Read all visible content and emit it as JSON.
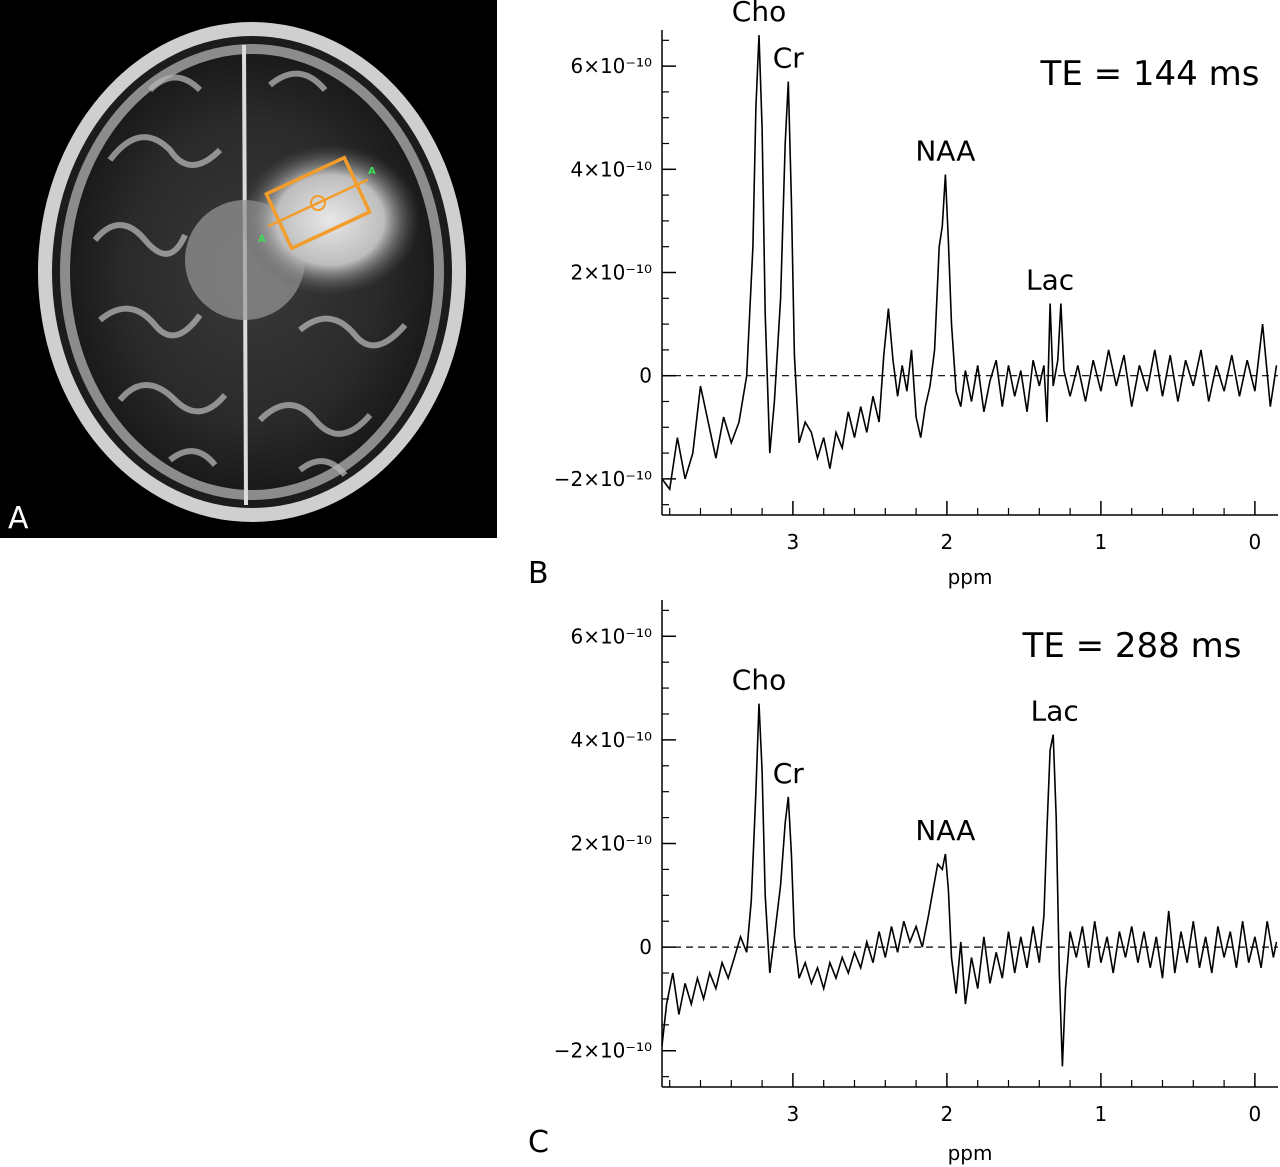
{
  "figure": {
    "panel_a": {
      "label": "A",
      "marker_label": "A",
      "colors": {
        "background": "#000000",
        "voxel_box": "#f29d2b",
        "marker": "#3ddc57"
      }
    }
  },
  "chart_data": [
    {
      "type": "line",
      "panel_label": "B",
      "annotation": "TE = 144 ms",
      "xlabel": "ppm",
      "ylabel": "",
      "xlim": [
        3.85,
        -0.15
      ],
      "ylim": [
        -2.7e-10,
        6.7e-10
      ],
      "xticks": [
        "3",
        "2",
        "1",
        "0"
      ],
      "yticks": [
        "−2×10⁻¹⁰",
        "0",
        "2×10⁻¹⁰",
        "4×10⁻¹⁰",
        "6×10⁻¹⁰"
      ],
      "baseline": 0,
      "peak_labels": [
        {
          "text": "Cho",
          "x": 3.22,
          "y": 6.6e-10
        },
        {
          "text": "Cr",
          "x": 3.03,
          "y": 5.7e-10
        },
        {
          "text": "NAA",
          "x": 2.01,
          "y": 3.9e-10
        },
        {
          "text": "Lac",
          "x": 1.33,
          "y": 1.4e-10
        }
      ],
      "series": [
        {
          "values": [
            [
              3.85,
              -2e-10
            ],
            [
              3.8,
              -2.2e-10
            ],
            [
              3.75,
              -1.2e-10
            ],
            [
              3.7,
              -2e-10
            ],
            [
              3.65,
              -1.5e-10
            ],
            [
              3.6,
              -2e-11
            ],
            [
              3.55,
              -9e-11
            ],
            [
              3.5,
              -1.6e-10
            ],
            [
              3.45,
              -8e-11
            ],
            [
              3.4,
              -1.3e-10
            ],
            [
              3.35,
              -9e-11
            ],
            [
              3.3,
              0.0
            ],
            [
              3.26,
              2.5e-10
            ],
            [
              3.24,
              5.2e-10
            ],
            [
              3.22,
              6.6e-10
            ],
            [
              3.2,
              4.8e-10
            ],
            [
              3.18,
              1.2e-10
            ],
            [
              3.15,
              -1.5e-10
            ],
            [
              3.12,
              -5e-11
            ],
            [
              3.08,
              1.5e-10
            ],
            [
              3.05,
              4.5e-10
            ],
            [
              3.03,
              5.7e-10
            ],
            [
              3.01,
              3.4e-10
            ],
            [
              2.99,
              4e-11
            ],
            [
              2.96,
              -1.3e-10
            ],
            [
              2.92,
              -9e-11
            ],
            [
              2.88,
              -1.1e-10
            ],
            [
              2.84,
              -1.6e-10
            ],
            [
              2.8,
              -1.2e-10
            ],
            [
              2.76,
              -1.8e-10
            ],
            [
              2.72,
              -1.1e-10
            ],
            [
              2.68,
              -1.4e-10
            ],
            [
              2.64,
              -7e-11
            ],
            [
              2.6,
              -1.2e-10
            ],
            [
              2.56,
              -6e-11
            ],
            [
              2.52,
              -1.1e-10
            ],
            [
              2.48,
              -4e-11
            ],
            [
              2.44,
              -9e-11
            ],
            [
              2.41,
              4e-11
            ],
            [
              2.38,
              1.3e-10
            ],
            [
              2.35,
              3e-11
            ],
            [
              2.32,
              -4e-11
            ],
            [
              2.29,
              2e-11
            ],
            [
              2.26,
              -3e-11
            ],
            [
              2.23,
              5e-11
            ],
            [
              2.2,
              -8e-11
            ],
            [
              2.17,
              -1.2e-10
            ],
            [
              2.14,
              -6e-11
            ],
            [
              2.11,
              -2e-11
            ],
            [
              2.08,
              5e-11
            ],
            [
              2.05,
              2.5e-10
            ],
            [
              2.03,
              2.9e-10
            ],
            [
              2.01,
              3.9e-10
            ],
            [
              1.99,
              2.6e-10
            ],
            [
              1.97,
              1e-10
            ],
            [
              1.94,
              -3e-11
            ],
            [
              1.91,
              -6e-11
            ],
            [
              1.88,
              1e-11
            ],
            [
              1.84,
              -5e-11
            ],
            [
              1.8,
              2e-11
            ],
            [
              1.76,
              -7e-11
            ],
            [
              1.72,
              -1e-11
            ],
            [
              1.68,
              3e-11
            ],
            [
              1.64,
              -6e-11
            ],
            [
              1.6,
              2e-11
            ],
            [
              1.56,
              -4e-11
            ],
            [
              1.52,
              1e-11
            ],
            [
              1.48,
              -7e-11
            ],
            [
              1.44,
              3e-11
            ],
            [
              1.4,
              -2e-11
            ],
            [
              1.37,
              2e-11
            ],
            [
              1.35,
              -9e-11
            ],
            [
              1.33,
              1.4e-10
            ],
            [
              1.31,
              -2e-11
            ],
            [
              1.28,
              3e-11
            ],
            [
              1.26,
              1.4e-10
            ],
            [
              1.24,
              1e-11
            ],
            [
              1.2,
              -4e-11
            ],
            [
              1.15,
              2e-11
            ],
            [
              1.1,
              -5e-11
            ],
            [
              1.05,
              3e-11
            ],
            [
              1.0,
              -3e-11
            ],
            [
              0.95,
              5e-11
            ],
            [
              0.9,
              -2e-11
            ],
            [
              0.85,
              4e-11
            ],
            [
              0.8,
              -6e-11
            ],
            [
              0.75,
              2e-11
            ],
            [
              0.7,
              -3e-11
            ],
            [
              0.65,
              5e-11
            ],
            [
              0.6,
              -4e-11
            ],
            [
              0.55,
              4e-11
            ],
            [
              0.5,
              -5e-11
            ],
            [
              0.45,
              3e-11
            ],
            [
              0.4,
              -2e-11
            ],
            [
              0.35,
              5e-11
            ],
            [
              0.3,
              -5e-11
            ],
            [
              0.25,
              2e-11
            ],
            [
              0.2,
              -3e-11
            ],
            [
              0.15,
              4e-11
            ],
            [
              0.1,
              -4e-11
            ],
            [
              0.05,
              3e-11
            ],
            [
              0.0,
              -3e-11
            ],
            [
              -0.05,
              1e-10
            ],
            [
              -0.1,
              -6e-11
            ],
            [
              -0.14,
              2e-11
            ]
          ]
        }
      ]
    },
    {
      "type": "line",
      "panel_label": "C",
      "annotation": "TE = 288 ms",
      "xlabel": "ppm",
      "ylabel": "",
      "xlim": [
        3.85,
        -0.15
      ],
      "ylim": [
        -2.7e-10,
        6.7e-10
      ],
      "xticks": [
        "3",
        "2",
        "1",
        "0"
      ],
      "yticks": [
        "−2×10⁻¹⁰",
        "0",
        "2×10⁻¹⁰",
        "4×10⁻¹⁰",
        "6×10⁻¹⁰"
      ],
      "baseline": 0,
      "peak_labels": [
        {
          "text": "Cho",
          "x": 3.22,
          "y": 4.7e-10
        },
        {
          "text": "Cr",
          "x": 3.03,
          "y": 2.9e-10
        },
        {
          "text": "NAA",
          "x": 2.01,
          "y": 1.8e-10
        },
        {
          "text": "Lac",
          "x": 1.3,
          "y": 4.1e-10
        }
      ],
      "series": [
        {
          "values": [
            [
              3.85,
              -1.9e-10
            ],
            [
              3.82,
              -1.1e-10
            ],
            [
              3.78,
              -5e-11
            ],
            [
              3.74,
              -1.3e-10
            ],
            [
              3.7,
              -7e-11
            ],
            [
              3.66,
              -1.1e-10
            ],
            [
              3.62,
              -6e-11
            ],
            [
              3.58,
              -1e-10
            ],
            [
              3.54,
              -5e-11
            ],
            [
              3.5,
              -8e-11
            ],
            [
              3.46,
              -3e-11
            ],
            [
              3.42,
              -6e-11
            ],
            [
              3.38,
              -2e-11
            ],
            [
              3.34,
              2e-11
            ],
            [
              3.3,
              -1e-11
            ],
            [
              3.27,
              9e-11
            ],
            [
              3.24,
              3e-10
            ],
            [
              3.22,
              4.7e-10
            ],
            [
              3.2,
              3.4e-10
            ],
            [
              3.18,
              1e-10
            ],
            [
              3.15,
              -5e-11
            ],
            [
              3.12,
              2e-11
            ],
            [
              3.08,
              1.2e-10
            ],
            [
              3.05,
              2.4e-10
            ],
            [
              3.03,
              2.9e-10
            ],
            [
              3.01,
              1.8e-10
            ],
            [
              2.99,
              2e-11
            ],
            [
              2.96,
              -6e-11
            ],
            [
              2.92,
              -3e-11
            ],
            [
              2.88,
              -7e-11
            ],
            [
              2.84,
              -4e-11
            ],
            [
              2.8,
              -8e-11
            ],
            [
              2.76,
              -3e-11
            ],
            [
              2.72,
              -6e-11
            ],
            [
              2.68,
              -2e-11
            ],
            [
              2.64,
              -5e-11
            ],
            [
              2.6,
              -1e-11
            ],
            [
              2.56,
              -4e-11
            ],
            [
              2.52,
              1e-11
            ],
            [
              2.48,
              -3e-11
            ],
            [
              2.44,
              3e-11
            ],
            [
              2.4,
              -2e-11
            ],
            [
              2.36,
              4e-11
            ],
            [
              2.32,
              -1e-11
            ],
            [
              2.28,
              5e-11
            ],
            [
              2.24,
              1e-11
            ],
            [
              2.2,
              4e-11
            ],
            [
              2.16,
              0.0
            ],
            [
              2.12,
              6e-11
            ],
            [
              2.09,
              1.1e-10
            ],
            [
              2.06,
              1.6e-10
            ],
            [
              2.03,
              1.5e-10
            ],
            [
              2.01,
              1.8e-10
            ],
            [
              1.99,
              1.1e-10
            ],
            [
              1.97,
              -2e-11
            ],
            [
              1.94,
              -9e-11
            ],
            [
              1.91,
              1e-11
            ],
            [
              1.88,
              -1.1e-10
            ],
            [
              1.84,
              -2e-11
            ],
            [
              1.8,
              -8e-11
            ],
            [
              1.76,
              2e-11
            ],
            [
              1.72,
              -7e-11
            ],
            [
              1.68,
              -1e-11
            ],
            [
              1.64,
              -6e-11
            ],
            [
              1.6,
              3e-11
            ],
            [
              1.56,
              -5e-11
            ],
            [
              1.52,
              2e-11
            ],
            [
              1.48,
              -4e-11
            ],
            [
              1.44,
              4e-11
            ],
            [
              1.4,
              -3e-11
            ],
            [
              1.37,
              6e-11
            ],
            [
              1.35,
              2.3e-10
            ],
            [
              1.33,
              3.8e-10
            ],
            [
              1.31,
              4.1e-10
            ],
            [
              1.29,
              2.5e-10
            ],
            [
              1.27,
              -5e-11
            ],
            [
              1.25,
              -2.3e-10
            ],
            [
              1.23,
              -8e-11
            ],
            [
              1.2,
              3e-11
            ],
            [
              1.16,
              -2e-11
            ],
            [
              1.12,
              4e-11
            ],
            [
              1.08,
              -4e-11
            ],
            [
              1.04,
              5e-11
            ],
            [
              1.0,
              -3e-11
            ],
            [
              0.96,
              2e-11
            ],
            [
              0.92,
              -5e-11
            ],
            [
              0.88,
              3e-11
            ],
            [
              0.84,
              -2e-11
            ],
            [
              0.8,
              4e-11
            ],
            [
              0.76,
              -3e-11
            ],
            [
              0.72,
              3e-11
            ],
            [
              0.68,
              -4e-11
            ],
            [
              0.64,
              2e-11
            ],
            [
              0.6,
              -6e-11
            ],
            [
              0.56,
              7e-11
            ],
            [
              0.52,
              -5e-11
            ],
            [
              0.48,
              3e-11
            ],
            [
              0.44,
              -3e-11
            ],
            [
              0.4,
              5e-11
            ],
            [
              0.36,
              -4e-11
            ],
            [
              0.32,
              2e-11
            ],
            [
              0.28,
              -5e-11
            ],
            [
              0.24,
              4e-11
            ],
            [
              0.2,
              -2e-11
            ],
            [
              0.16,
              3e-11
            ],
            [
              0.12,
              -4e-11
            ],
            [
              0.08,
              5e-11
            ],
            [
              0.04,
              -3e-11
            ],
            [
              0.0,
              2e-11
            ],
            [
              -0.04,
              -4e-11
            ],
            [
              -0.08,
              5e-11
            ],
            [
              -0.12,
              -2e-11
            ],
            [
              -0.14,
              1e-11
            ]
          ]
        }
      ]
    }
  ]
}
